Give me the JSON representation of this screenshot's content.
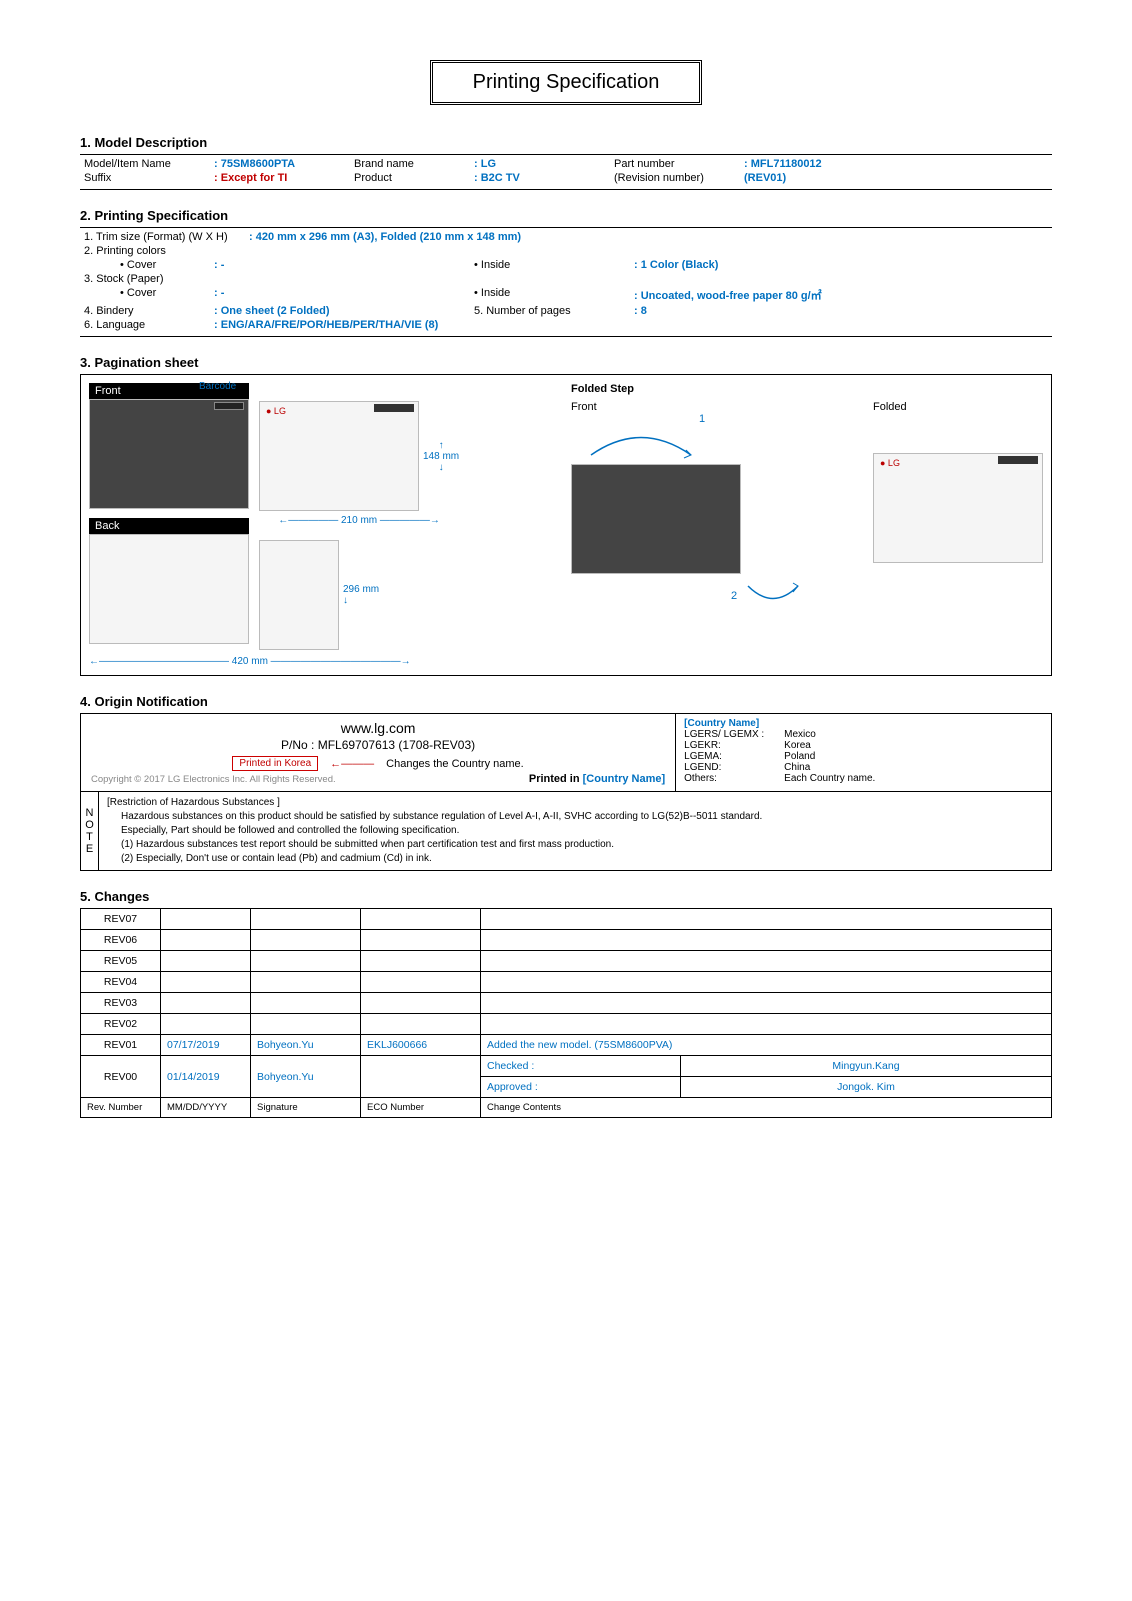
{
  "title": "Printing Specification",
  "s1": {
    "hdr": "1. Model Description",
    "rows": [
      {
        "k1": "Model/Item Name",
        "v1": "75SM8600PTA",
        "k2": "Brand name",
        "v2": "LG",
        "k3": "Part number",
        "v3": "MFL71180012"
      },
      {
        "k1": "Suffix",
        "v1": "Except for TI",
        "k2": "Product",
        "v2": "B2C TV",
        "k3": "(Revision number)",
        "v3": "(REV01)"
      }
    ]
  },
  "s2": {
    "hdr": "2. Printing Specification",
    "trim_k": "1. Trim size (Format) (W X H)",
    "trim_v": "420 mm x 296 mm (A3), Folded (210 mm x 148 mm)",
    "pc_k": "2. Printing colors",
    "cover_k": "• Cover",
    "cover_v": "-",
    "inside_k": "• Inside",
    "inside_v": "1 Color (Black)",
    "sp_k": "3. Stock (Paper)",
    "spcover_k": "• Cover",
    "spcover_v": "-",
    "spinside_k": "• Inside",
    "spinside_v": "Uncoated, wood-free paper 80 g/㎡",
    "bindery_k": "4. Bindery",
    "bindery_v": "One sheet (2 Folded)",
    "pages_k": "5. Number of pages",
    "pages_v": "8",
    "lang_k": "6. Language",
    "lang_v": "ENG/ARA/FRE/POR/HEB/PER/THA/VIE (8)"
  },
  "s3": {
    "hdr": "3. Pagination sheet",
    "front": "Front",
    "back": "Back",
    "barcode": "Barcode",
    "folded_step": "Folded Step",
    "folded": "Folded",
    "d148": "148 mm",
    "d210": "210 mm",
    "d296": "296 mm",
    "d420": "420 mm",
    "n1": "1",
    "n2": "2"
  },
  "s4": {
    "hdr": "4. Origin Notification",
    "url": "www.lg.com",
    "pno": "P/No : MFL69707613 (1708-REV03)",
    "pik": "Printed in Korea",
    "chg": "Changes the Country name.",
    "pin": "Printed in ",
    "pin_c": "[Country Name]",
    "cpy": "Copyright © 2017 LG Electronics Inc. All Rights Reserved.",
    "cn_hdr": "[Country Name]",
    "countries": [
      {
        "k": "LGERS/ LGEMX :",
        "v": "Mexico"
      },
      {
        "k": "LGEKR:",
        "v": "Korea"
      },
      {
        "k": "LGEMA:",
        "v": "Poland"
      },
      {
        "k": "LGEND:",
        "v": "China"
      },
      {
        "k": "Others:",
        "v": "Each Country name."
      }
    ],
    "note_hdr": "[Restriction of Hazardous Substances ]",
    "note1": "Hazardous substances on this product should be satisfied by substance regulation of Level A-I, A-II, SVHC according to LG(52)B--5011 standard.",
    "note2": "Especially, Part should be followed and controlled the following specification.",
    "note3": "(1) Hazardous substances test report should be submitted when part certification test and first mass production.",
    "note4": "(2) Especially, Don't use or contain lead (Pb) and cadmium (Cd) in ink.",
    "note_tab": "NOTE"
  },
  "s5": {
    "hdr": "5. Changes",
    "revs": [
      "REV07",
      "REV06",
      "REV05",
      "REV04",
      "REV03",
      "REV02"
    ],
    "r01": {
      "rev": "REV01",
      "date": "07/17/2019",
      "sig": "Bohyeon.Yu",
      "eco": "EKLJ600666",
      "cc": "Added the new model. (75SM8600PVA)"
    },
    "r00": {
      "rev": "REV00",
      "date": "01/14/2019",
      "sig": "Bohyeon.Yu",
      "checked_k": "Checked :",
      "checked_v": "Mingyun.Kang",
      "approved_k": "Approved :",
      "approved_v": "Jongok. Kim"
    },
    "cols": {
      "rev": "Rev. Number",
      "date": "MM/DD/YYYY",
      "sig": "Signature",
      "eco": "ECO Number",
      "cc": "Change Contents"
    }
  }
}
